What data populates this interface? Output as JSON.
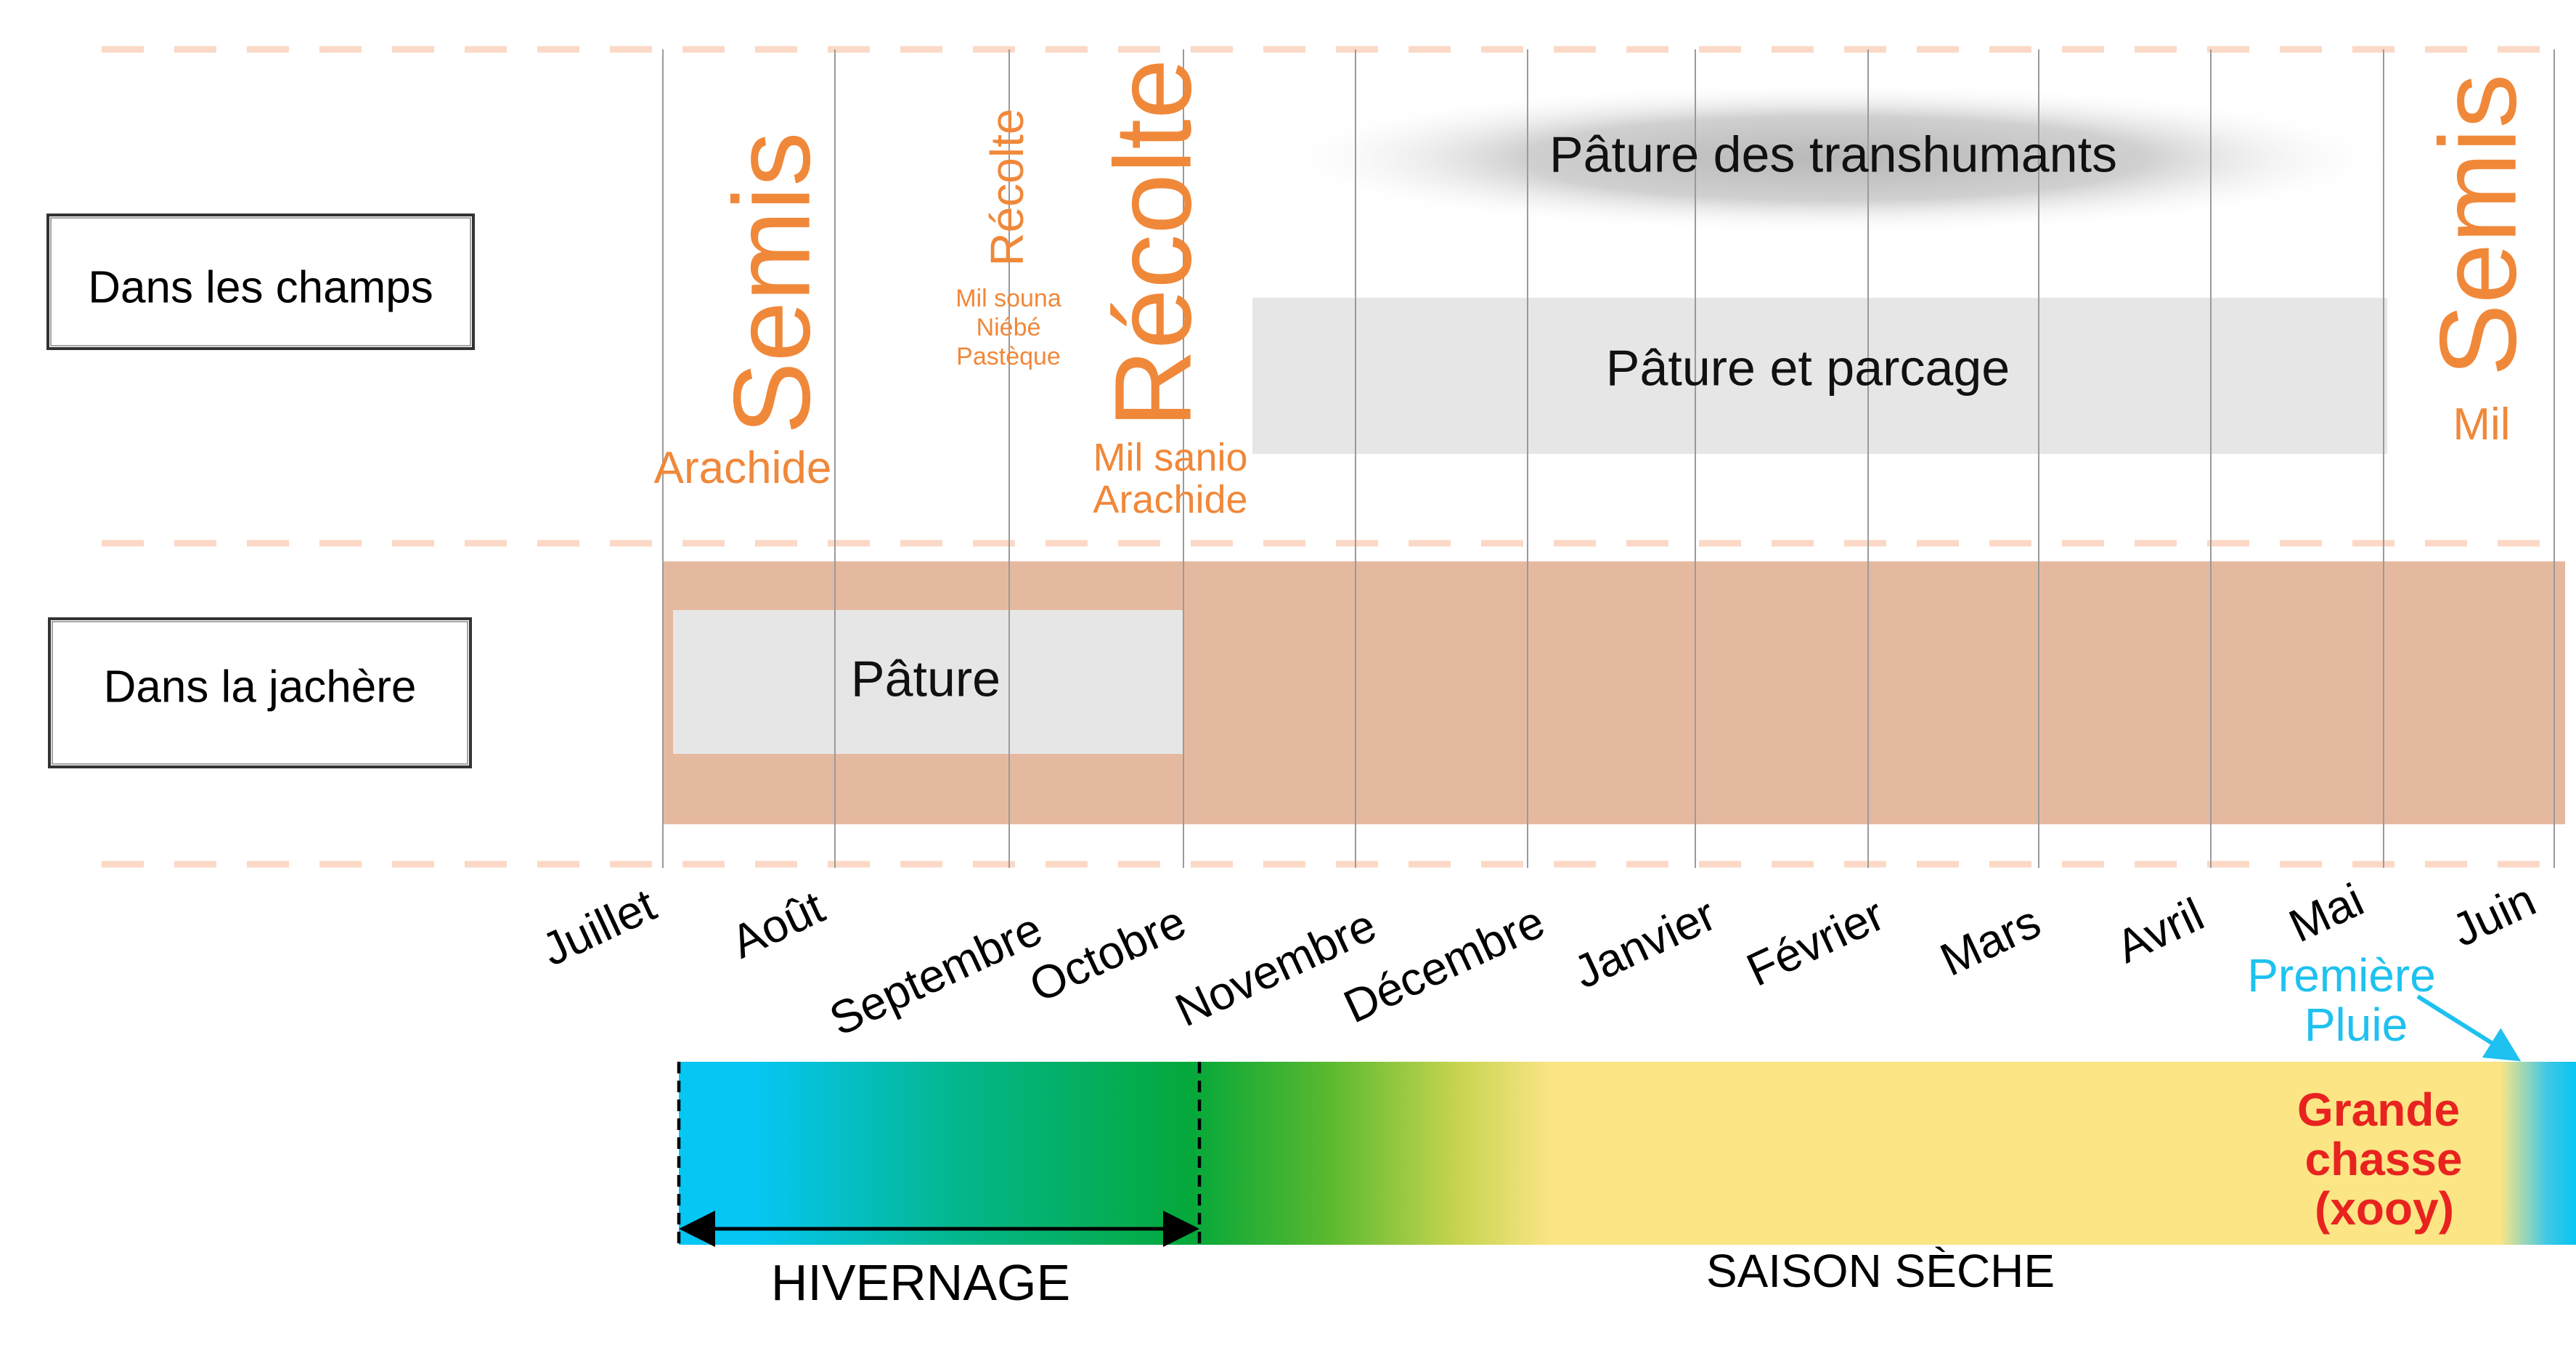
{
  "rows": {
    "champs_label": "Dans les champs",
    "jachere_label": "Dans la jachère"
  },
  "months": [
    "Juillet",
    "Août",
    "Septembre",
    "Octobre",
    "Novembre",
    "Décembre",
    "Janvier",
    "Février",
    "Mars",
    "Avril",
    "Mai",
    "Juin"
  ],
  "events": {
    "semis_1": "Semis",
    "semis_1_crop": "Arachide",
    "recolte_small": "Récolte",
    "recolte_small_crops": [
      "Mil souna",
      "Niébé",
      "Pastèque"
    ],
    "recolte_big": "Récolte",
    "recolte_big_crops": [
      "Mil sanio",
      "Arachide"
    ],
    "semis_2": "Semis",
    "semis_2_crop": "Mil"
  },
  "bands": {
    "transhumants": "Pâture des transhumants",
    "parcage": "Pâture et parcage",
    "pature_jachere": "Pâture"
  },
  "seasons": {
    "hivernage": "HIVERNAGE",
    "saison_seche": "SAISON SÈCHE",
    "premiere_pluie": [
      "Première",
      "Pluie"
    ],
    "grande_chasse": [
      "Grande",
      "chasse",
      "(xooy)"
    ]
  },
  "colors": {
    "accent_orange": "#f0883a",
    "dashed_line": "#fbd9c6",
    "jachere_fill": "#e5b9a0",
    "band_grey": "#e6e6e6",
    "rain_blue": "#1ec1ef",
    "chasse_red": "#e8231f",
    "season_yellow": "#fbe585",
    "season_green": "#05a83a"
  }
}
